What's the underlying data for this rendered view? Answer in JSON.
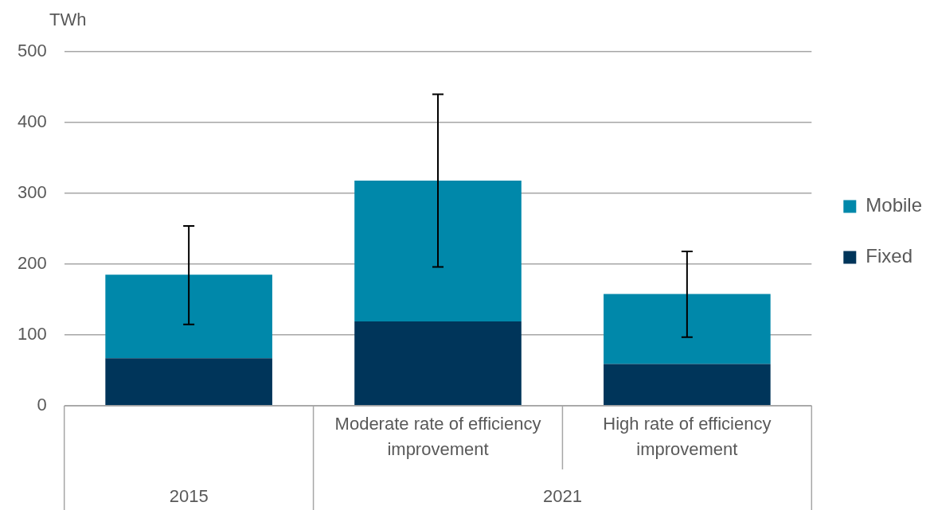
{
  "chart_data": {
    "type": "bar",
    "stacked": true,
    "ylabel": "TWh",
    "categories": [
      null,
      "Moderate rate of efficiency improvement",
      "High rate of efficiency improvement"
    ],
    "series": [
      {
        "name": "Fixed",
        "color": "#00355a",
        "values": [
          67,
          119,
          59
        ]
      },
      {
        "name": "Mobile",
        "color": "#0088aa",
        "values": [
          118,
          199,
          99
        ],
        "errors": [
          [
            115,
            254
          ],
          [
            196,
            440
          ],
          [
            97,
            218
          ]
        ]
      }
    ],
    "ylim": [
      0,
      500
    ],
    "yticks": [
      0,
      100,
      200,
      300,
      400,
      500
    ],
    "grid": "y",
    "legend": "right",
    "annotations": [
      "2015",
      "2021"
    ]
  }
}
